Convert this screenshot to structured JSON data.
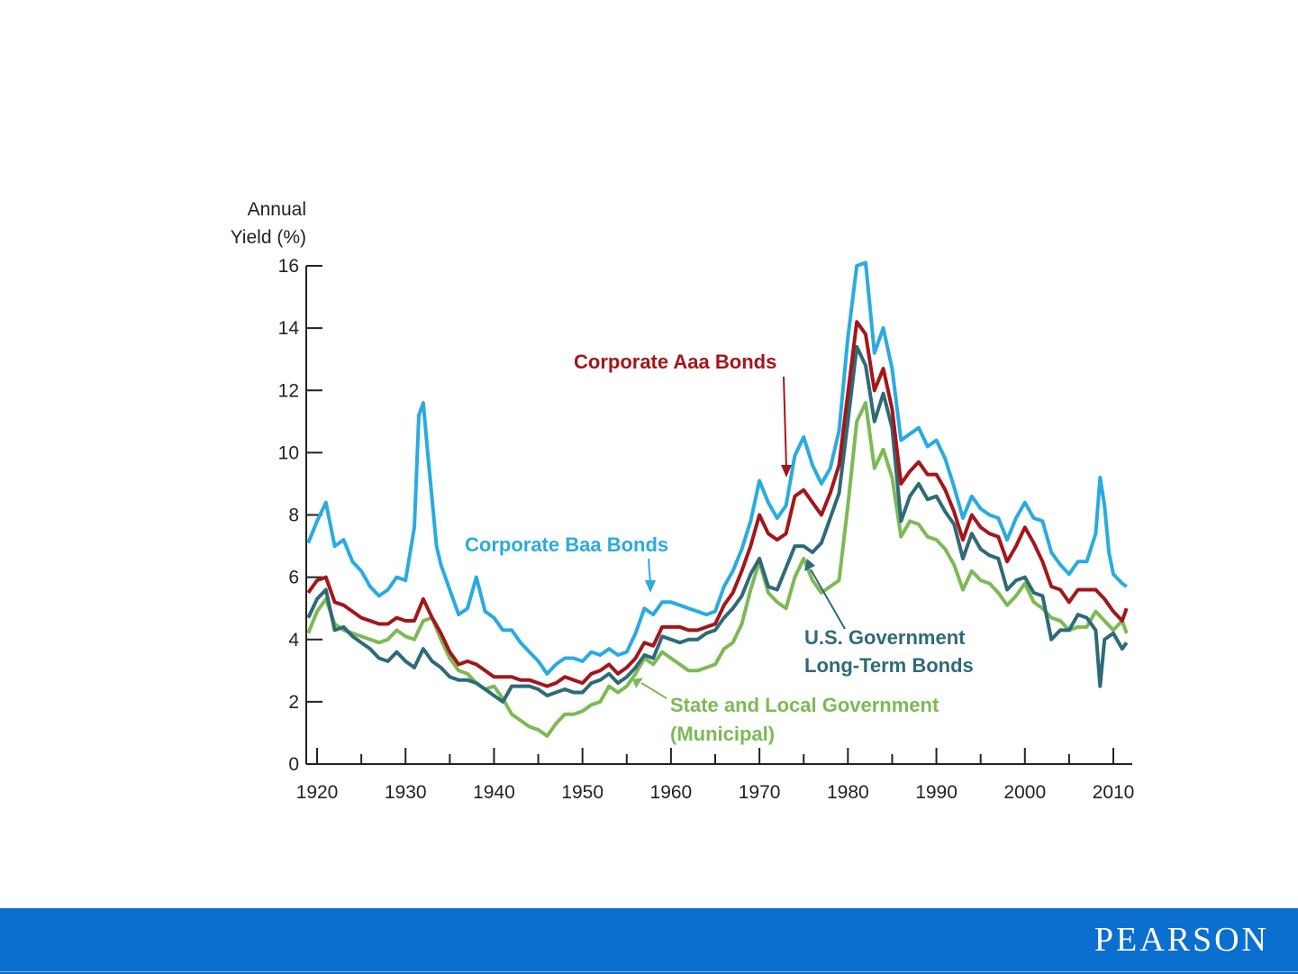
{
  "colors": {
    "baa": "#29abe2",
    "aaa": "#a4161a",
    "govt": "#2f6a78",
    "muni": "#7cba54",
    "axis": "#222222",
    "footer": "#0a6fce"
  },
  "footer": {
    "brand": "PEARSON"
  },
  "chart_data": {
    "type": "line",
    "title": "",
    "ylabel_line1": "Annual",
    "ylabel_line2": "Yield (%)",
    "xlabel": "",
    "xlim": [
      1919,
      2012
    ],
    "ylim": [
      0,
      16
    ],
    "yticks": [
      0,
      2,
      4,
      6,
      8,
      10,
      12,
      14,
      16
    ],
    "xticks": [
      1920,
      1930,
      1940,
      1950,
      1960,
      1970,
      1980,
      1990,
      2000,
      2010
    ],
    "xtick_labels": [
      "1920",
      "1930",
      "1940",
      "1950",
      "1960",
      "1970",
      "1980",
      "1990",
      "2000",
      "2010"
    ],
    "ytick_labels": [
      "0",
      "2",
      "4",
      "6",
      "8",
      "10",
      "12",
      "14",
      "16"
    ],
    "grid": false,
    "series": [
      {
        "name": "Corporate Baa Bonds",
        "label": "Corporate Baa Bonds",
        "color_key": "baa",
        "x": [
          1919,
          1920,
          1921,
          1922,
          1923,
          1924,
          1925,
          1926,
          1927,
          1928,
          1929,
          1930,
          1931,
          1931.5,
          1932,
          1932.5,
          1933,
          1933.5,
          1934,
          1935,
          1936,
          1937,
          1938,
          1939,
          1940,
          1941,
          1942,
          1943,
          1944,
          1945,
          1946,
          1947,
          1948,
          1949,
          1950,
          1951,
          1952,
          1953,
          1954,
          1955,
          1956,
          1957,
          1958,
          1959,
          1960,
          1961,
          1962,
          1963,
          1964,
          1965,
          1966,
          1967,
          1968,
          1969,
          1970,
          1971,
          1972,
          1973,
          1974,
          1975,
          1976,
          1977,
          1978,
          1979,
          1980,
          1981,
          1982,
          1983,
          1984,
          1985,
          1986,
          1987,
          1988,
          1989,
          1990,
          1991,
          1992,
          1993,
          1994,
          1995,
          1996,
          1997,
          1998,
          1999,
          2000,
          2001,
          2002,
          2003,
          2004,
          2005,
          2006,
          2007,
          2008,
          2008.5,
          2009,
          2009.5,
          2010,
          2011,
          2011.5
        ],
        "values": [
          7.1,
          7.8,
          8.4,
          7.0,
          7.2,
          6.5,
          6.2,
          5.7,
          5.4,
          5.6,
          6.0,
          5.9,
          7.6,
          11.2,
          11.6,
          10.0,
          8.5,
          7.0,
          6.4,
          5.6,
          4.8,
          5.0,
          6.0,
          4.9,
          4.7,
          4.3,
          4.3,
          3.9,
          3.6,
          3.3,
          2.9,
          3.2,
          3.4,
          3.4,
          3.3,
          3.6,
          3.5,
          3.7,
          3.5,
          3.6,
          4.2,
          5.0,
          4.8,
          5.2,
          5.2,
          5.1,
          5.0,
          4.9,
          4.8,
          4.9,
          5.7,
          6.2,
          6.9,
          7.8,
          9.1,
          8.4,
          7.9,
          8.3,
          9.9,
          10.5,
          9.6,
          9.0,
          9.5,
          10.7,
          13.7,
          16.0,
          16.1,
          13.2,
          14.0,
          12.7,
          10.4,
          10.6,
          10.8,
          10.2,
          10.4,
          9.8,
          8.9,
          7.9,
          8.6,
          8.2,
          8.0,
          7.9,
          7.2,
          7.9,
          8.4,
          7.9,
          7.8,
          6.8,
          6.4,
          6.1,
          6.5,
          6.5,
          7.4,
          9.2,
          8.3,
          6.8,
          6.1,
          5.8,
          5.7
        ]
      },
      {
        "name": "Corporate Aaa Bonds",
        "label": "Corporate Aaa Bonds",
        "color_key": "aaa",
        "x": [
          1919,
          1920,
          1921,
          1922,
          1923,
          1924,
          1925,
          1926,
          1927,
          1928,
          1929,
          1930,
          1931,
          1932,
          1933,
          1934,
          1935,
          1936,
          1937,
          1938,
          1939,
          1940,
          1941,
          1942,
          1943,
          1944,
          1945,
          1946,
          1947,
          1948,
          1949,
          1950,
          1951,
          1952,
          1953,
          1954,
          1955,
          1956,
          1957,
          1958,
          1959,
          1960,
          1961,
          1962,
          1963,
          1964,
          1965,
          1966,
          1967,
          1968,
          1969,
          1970,
          1971,
          1972,
          1973,
          1974,
          1975,
          1976,
          1977,
          1978,
          1979,
          1980,
          1981,
          1982,
          1983,
          1984,
          1985,
          1986,
          1987,
          1988,
          1989,
          1990,
          1991,
          1992,
          1993,
          1994,
          1995,
          1996,
          1997,
          1998,
          1999,
          2000,
          2001,
          2002,
          2003,
          2004,
          2005,
          2006,
          2007,
          2008,
          2009,
          2010,
          2011,
          2011.5
        ],
        "values": [
          5.5,
          5.9,
          6.0,
          5.2,
          5.1,
          4.9,
          4.7,
          4.6,
          4.5,
          4.5,
          4.7,
          4.6,
          4.6,
          5.3,
          4.7,
          4.2,
          3.6,
          3.2,
          3.3,
          3.2,
          3.0,
          2.8,
          2.8,
          2.8,
          2.7,
          2.7,
          2.6,
          2.5,
          2.6,
          2.8,
          2.7,
          2.6,
          2.9,
          3.0,
          3.2,
          2.9,
          3.1,
          3.4,
          3.9,
          3.8,
          4.4,
          4.4,
          4.4,
          4.3,
          4.3,
          4.4,
          4.5,
          5.1,
          5.5,
          6.2,
          7.0,
          8.0,
          7.4,
          7.2,
          7.4,
          8.6,
          8.8,
          8.4,
          8.0,
          8.7,
          9.6,
          11.9,
          14.2,
          13.8,
          12.0,
          12.7,
          11.4,
          9.0,
          9.4,
          9.7,
          9.3,
          9.3,
          8.8,
          8.1,
          7.2,
          8.0,
          7.6,
          7.4,
          7.3,
          6.5,
          7.0,
          7.6,
          7.1,
          6.5,
          5.7,
          5.6,
          5.2,
          5.6,
          5.6,
          5.6,
          5.3,
          4.9,
          4.6,
          5.0
        ]
      },
      {
        "name": "U.S. Government Long-Term Bonds",
        "label_line1": "U.S. Government",
        "label_line2": "Long-Term Bonds",
        "color_key": "govt",
        "x": [
          1919,
          1920,
          1921,
          1922,
          1923,
          1924,
          1925,
          1926,
          1927,
          1928,
          1929,
          1930,
          1931,
          1932,
          1933,
          1934,
          1935,
          1936,
          1937,
          1938,
          1939,
          1940,
          1941,
          1942,
          1943,
          1944,
          1945,
          1946,
          1947,
          1948,
          1949,
          1950,
          1951,
          1952,
          1953,
          1954,
          1955,
          1956,
          1957,
          1958,
          1959,
          1960,
          1961,
          1962,
          1963,
          1964,
          1965,
          1966,
          1967,
          1968,
          1969,
          1970,
          1971,
          1972,
          1973,
          1974,
          1975,
          1976,
          1977,
          1978,
          1979,
          1980,
          1981,
          1982,
          1983,
          1984,
          1985,
          1986,
          1987,
          1988,
          1989,
          1990,
          1991,
          1992,
          1993,
          1994,
          1995,
          1996,
          1997,
          1998,
          1999,
          2000,
          2001,
          2002,
          2003,
          2004,
          2005,
          2006,
          2007,
          2008,
          2008.5,
          2009,
          2010,
          2011,
          2011.5
        ],
        "values": [
          4.7,
          5.3,
          5.6,
          4.3,
          4.4,
          4.1,
          3.9,
          3.7,
          3.4,
          3.3,
          3.6,
          3.3,
          3.1,
          3.7,
          3.3,
          3.1,
          2.8,
          2.7,
          2.7,
          2.6,
          2.4,
          2.2,
          2.0,
          2.5,
          2.5,
          2.5,
          2.4,
          2.2,
          2.3,
          2.4,
          2.3,
          2.3,
          2.6,
          2.7,
          2.9,
          2.6,
          2.8,
          3.1,
          3.5,
          3.4,
          4.1,
          4.0,
          3.9,
          4.0,
          4.0,
          4.2,
          4.3,
          4.7,
          5.0,
          5.4,
          6.1,
          6.6,
          5.7,
          5.6,
          6.3,
          7.0,
          7.0,
          6.8,
          7.1,
          7.9,
          8.7,
          11.0,
          13.4,
          12.8,
          11.0,
          11.9,
          10.8,
          7.8,
          8.6,
          9.0,
          8.5,
          8.6,
          8.1,
          7.7,
          6.6,
          7.4,
          6.9,
          6.7,
          6.6,
          5.6,
          5.9,
          6.0,
          5.5,
          5.4,
          4.0,
          4.3,
          4.3,
          4.8,
          4.7,
          4.3,
          2.5,
          4.0,
          4.2,
          3.7,
          3.9
        ]
      },
      {
        "name": "State and Local Government (Municipal)",
        "label_line1": "State and Local Government",
        "label_line2": "(Municipal)",
        "color_key": "muni",
        "x": [
          1919,
          1920,
          1921,
          1922,
          1923,
          1924,
          1925,
          1926,
          1927,
          1928,
          1929,
          1930,
          1931,
          1932,
          1933,
          1934,
          1935,
          1936,
          1937,
          1938,
          1939,
          1940,
          1941,
          1942,
          1943,
          1944,
          1945,
          1946,
          1947,
          1948,
          1949,
          1950,
          1951,
          1952,
          1953,
          1954,
          1955,
          1956,
          1957,
          1958,
          1959,
          1960,
          1961,
          1962,
          1963,
          1964,
          1965,
          1966,
          1967,
          1968,
          1969,
          1970,
          1971,
          1972,
          1973,
          1974,
          1975,
          1976,
          1977,
          1978,
          1979,
          1980,
          1981,
          1982,
          1983,
          1984,
          1985,
          1986,
          1987,
          1988,
          1989,
          1990,
          1991,
          1992,
          1993,
          1994,
          1995,
          1996,
          1997,
          1998,
          1999,
          2000,
          2001,
          2002,
          2003,
          2004,
          2005,
          2006,
          2007,
          2008,
          2009,
          2010,
          2011,
          2011.5
        ],
        "values": [
          4.2,
          4.9,
          5.3,
          4.5,
          4.3,
          4.2,
          4.1,
          4.0,
          3.9,
          4.0,
          4.3,
          4.1,
          4.0,
          4.6,
          4.7,
          4.0,
          3.4,
          3.0,
          2.9,
          2.6,
          2.4,
          2.5,
          2.1,
          1.6,
          1.4,
          1.2,
          1.1,
          0.9,
          1.3,
          1.6,
          1.6,
          1.7,
          1.9,
          2.0,
          2.5,
          2.3,
          2.5,
          2.9,
          3.4,
          3.2,
          3.6,
          3.4,
          3.2,
          3.0,
          3.0,
          3.1,
          3.2,
          3.7,
          3.9,
          4.5,
          5.6,
          6.5,
          5.5,
          5.2,
          5.0,
          6.0,
          6.6,
          5.9,
          5.5,
          5.7,
          5.9,
          8.3,
          11.0,
          11.6,
          9.5,
          10.1,
          9.2,
          7.3,
          7.8,
          7.7,
          7.3,
          7.2,
          6.9,
          6.4,
          5.6,
          6.2,
          5.9,
          5.8,
          5.5,
          5.1,
          5.4,
          5.8,
          5.2,
          5.0,
          4.7,
          4.6,
          4.3,
          4.4,
          4.4,
          4.9,
          4.6,
          4.3,
          4.6,
          4.2
        ]
      }
    ]
  }
}
